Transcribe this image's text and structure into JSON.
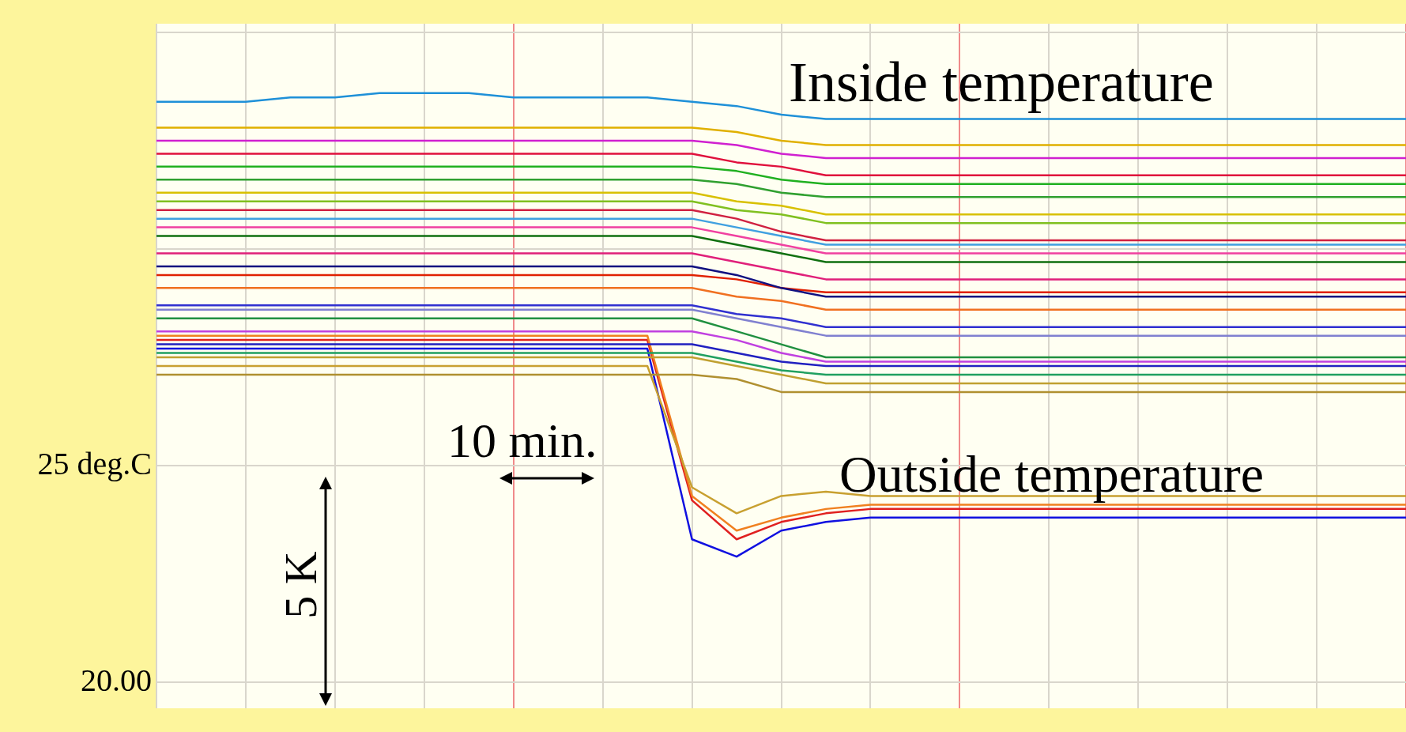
{
  "chart_data": {
    "type": "line",
    "annotations": [
      "Inside temperature",
      "Outside temperature",
      "10 min.",
      "5 K"
    ],
    "categories": [
      null,
      null,
      null,
      null,
      null,
      null,
      null,
      null,
      null,
      null,
      null,
      null,
      null,
      null,
      null,
      null,
      null,
      null,
      null,
      null,
      null,
      null,
      null,
      null,
      null,
      null,
      null,
      null,
      null
    ],
    "series": [
      {
        "color": "#1e90d8",
        "values": [
          33.4,
          33.4,
          33.4,
          33.5,
          33.5,
          33.6,
          33.6,
          33.6,
          33.5,
          33.5,
          33.5,
          33.5,
          33.4,
          33.3,
          33.1,
          33.0,
          33.0,
          33.0,
          33.0,
          33.0,
          33.0,
          33.0,
          33.0,
          33.0,
          33.0,
          33.0,
          33.0,
          33.0,
          33.0
        ]
      },
      {
        "color": "#e0b000",
        "values": [
          32.8,
          32.8,
          32.8,
          32.8,
          32.8,
          32.8,
          32.8,
          32.8,
          32.8,
          32.8,
          32.8,
          32.8,
          32.8,
          32.7,
          32.5,
          32.4,
          32.4,
          32.4,
          32.4,
          32.4,
          32.4,
          32.4,
          32.4,
          32.4,
          32.4,
          32.4,
          32.4,
          32.4,
          32.4
        ]
      },
      {
        "color": "#d020d0",
        "values": [
          32.5,
          32.5,
          32.5,
          32.5,
          32.5,
          32.5,
          32.5,
          32.5,
          32.5,
          32.5,
          32.5,
          32.5,
          32.5,
          32.4,
          32.2,
          32.1,
          32.1,
          32.1,
          32.1,
          32.1,
          32.1,
          32.1,
          32.1,
          32.1,
          32.1,
          32.1,
          32.1,
          32.1,
          32.1
        ]
      },
      {
        "color": "#e0103c",
        "values": [
          32.2,
          32.2,
          32.2,
          32.2,
          32.2,
          32.2,
          32.2,
          32.2,
          32.2,
          32.2,
          32.2,
          32.2,
          32.2,
          32.0,
          31.9,
          31.7,
          31.7,
          31.7,
          31.7,
          31.7,
          31.7,
          31.7,
          31.7,
          31.7,
          31.7,
          31.7,
          31.7,
          31.7,
          31.7
        ]
      },
      {
        "color": "#20b020",
        "values": [
          31.9,
          31.9,
          31.9,
          31.9,
          31.9,
          31.9,
          31.9,
          31.9,
          31.9,
          31.9,
          31.9,
          31.9,
          31.9,
          31.8,
          31.6,
          31.5,
          31.5,
          31.5,
          31.5,
          31.5,
          31.5,
          31.5,
          31.5,
          31.5,
          31.5,
          31.5,
          31.5,
          31.5,
          31.5
        ]
      },
      {
        "color": "#30a030",
        "values": [
          31.6,
          31.6,
          31.6,
          31.6,
          31.6,
          31.6,
          31.6,
          31.6,
          31.6,
          31.6,
          31.6,
          31.6,
          31.6,
          31.5,
          31.3,
          31.2,
          31.2,
          31.2,
          31.2,
          31.2,
          31.2,
          31.2,
          31.2,
          31.2,
          31.2,
          31.2,
          31.2,
          31.2,
          31.2
        ]
      },
      {
        "color": "#d8c000",
        "values": [
          31.3,
          31.3,
          31.3,
          31.3,
          31.3,
          31.3,
          31.3,
          31.3,
          31.3,
          31.3,
          31.3,
          31.3,
          31.3,
          31.1,
          31.0,
          30.8,
          30.8,
          30.8,
          30.8,
          30.8,
          30.8,
          30.8,
          30.8,
          30.8,
          30.8,
          30.8,
          30.8,
          30.8,
          30.8
        ]
      },
      {
        "color": "#80c020",
        "values": [
          31.1,
          31.1,
          31.1,
          31.1,
          31.1,
          31.1,
          31.1,
          31.1,
          31.1,
          31.1,
          31.1,
          31.1,
          31.1,
          30.9,
          30.8,
          30.6,
          30.6,
          30.6,
          30.6,
          30.6,
          30.6,
          30.6,
          30.6,
          30.6,
          30.6,
          30.6,
          30.6,
          30.6,
          30.6
        ]
      },
      {
        "color": "#d02040",
        "values": [
          30.9,
          30.9,
          30.9,
          30.9,
          30.9,
          30.9,
          30.9,
          30.9,
          30.9,
          30.9,
          30.9,
          30.9,
          30.9,
          30.7,
          30.4,
          30.2,
          30.2,
          30.2,
          30.2,
          30.2,
          30.2,
          30.2,
          30.2,
          30.2,
          30.2,
          30.2,
          30.2,
          30.2,
          30.2
        ]
      },
      {
        "color": "#40a0e0",
        "values": [
          30.7,
          30.7,
          30.7,
          30.7,
          30.7,
          30.7,
          30.7,
          30.7,
          30.7,
          30.7,
          30.7,
          30.7,
          30.7,
          30.5,
          30.3,
          30.1,
          30.1,
          30.1,
          30.1,
          30.1,
          30.1,
          30.1,
          30.1,
          30.1,
          30.1,
          30.1,
          30.1,
          30.1,
          30.1
        ]
      },
      {
        "color": "#f040a0",
        "values": [
          30.5,
          30.5,
          30.5,
          30.5,
          30.5,
          30.5,
          30.5,
          30.5,
          30.5,
          30.5,
          30.5,
          30.5,
          30.5,
          30.3,
          30.1,
          29.9,
          29.9,
          29.9,
          29.9,
          29.9,
          29.9,
          29.9,
          29.9,
          29.9,
          29.9,
          29.9,
          29.9,
          29.9,
          29.9
        ]
      },
      {
        "color": "#107010",
        "values": [
          30.3,
          30.3,
          30.3,
          30.3,
          30.3,
          30.3,
          30.3,
          30.3,
          30.3,
          30.3,
          30.3,
          30.3,
          30.3,
          30.1,
          29.9,
          29.7,
          29.7,
          29.7,
          29.7,
          29.7,
          29.7,
          29.7,
          29.7,
          29.7,
          29.7,
          29.7,
          29.7,
          29.7,
          29.7
        ]
      },
      {
        "color": "#e0207a",
        "values": [
          29.9,
          29.9,
          29.9,
          29.9,
          29.9,
          29.9,
          29.9,
          29.9,
          29.9,
          29.9,
          29.9,
          29.9,
          29.9,
          29.7,
          29.5,
          29.3,
          29.3,
          29.3,
          29.3,
          29.3,
          29.3,
          29.3,
          29.3,
          29.3,
          29.3,
          29.3,
          29.3,
          29.3,
          29.3
        ]
      },
      {
        "color": "#101080",
        "values": [
          29.6,
          29.6,
          29.6,
          29.6,
          29.6,
          29.6,
          29.6,
          29.6,
          29.6,
          29.6,
          29.6,
          29.6,
          29.6,
          29.4,
          29.1,
          28.9,
          28.9,
          28.9,
          28.9,
          28.9,
          28.9,
          28.9,
          28.9,
          28.9,
          28.9,
          28.9,
          28.9,
          28.9,
          28.9
        ]
      },
      {
        "color": "#e02000",
        "values": [
          29.4,
          29.4,
          29.4,
          29.4,
          29.4,
          29.4,
          29.4,
          29.4,
          29.4,
          29.4,
          29.4,
          29.4,
          29.4,
          29.3,
          29.1,
          29.0,
          29.0,
          29.0,
          29.0,
          29.0,
          29.0,
          29.0,
          29.0,
          29.0,
          29.0,
          29.0,
          29.0,
          29.0,
          29.0
        ]
      },
      {
        "color": "#f07020",
        "values": [
          29.1,
          29.1,
          29.1,
          29.1,
          29.1,
          29.1,
          29.1,
          29.1,
          29.1,
          29.1,
          29.1,
          29.1,
          29.1,
          28.9,
          28.8,
          28.6,
          28.6,
          28.6,
          28.6,
          28.6,
          28.6,
          28.6,
          28.6,
          28.6,
          28.6,
          28.6,
          28.6,
          28.6,
          28.6
        ]
      },
      {
        "color": "#3030d0",
        "values": [
          28.7,
          28.7,
          28.7,
          28.7,
          28.7,
          28.7,
          28.7,
          28.7,
          28.7,
          28.7,
          28.7,
          28.7,
          28.7,
          28.5,
          28.4,
          28.2,
          28.2,
          28.2,
          28.2,
          28.2,
          28.2,
          28.2,
          28.2,
          28.2,
          28.2,
          28.2,
          28.2,
          28.2,
          28.2
        ]
      },
      {
        "color": "#8080d0",
        "values": [
          28.6,
          28.6,
          28.6,
          28.6,
          28.6,
          28.6,
          28.6,
          28.6,
          28.6,
          28.6,
          28.6,
          28.6,
          28.6,
          28.4,
          28.2,
          28.0,
          28.0,
          28.0,
          28.0,
          28.0,
          28.0,
          28.0,
          28.0,
          28.0,
          28.0,
          28.0,
          28.0,
          28.0,
          28.0
        ]
      },
      {
        "color": "#209040",
        "values": [
          28.4,
          28.4,
          28.4,
          28.4,
          28.4,
          28.4,
          28.4,
          28.4,
          28.4,
          28.4,
          28.4,
          28.4,
          28.4,
          28.1,
          27.8,
          27.5,
          27.5,
          27.5,
          27.5,
          27.5,
          27.5,
          27.5,
          27.5,
          27.5,
          27.5,
          27.5,
          27.5,
          27.5,
          27.5
        ]
      },
      {
        "color": "#c040e0",
        "values": [
          28.1,
          28.1,
          28.1,
          28.1,
          28.1,
          28.1,
          28.1,
          28.1,
          28.1,
          28.1,
          28.1,
          28.1,
          28.1,
          27.9,
          27.6,
          27.4,
          27.4,
          27.4,
          27.4,
          27.4,
          27.4,
          27.4,
          27.4,
          27.4,
          27.4,
          27.4,
          27.4,
          27.4,
          27.4
        ]
      },
      {
        "color": "#2020c0",
        "values": [
          27.8,
          27.8,
          27.8,
          27.8,
          27.8,
          27.8,
          27.8,
          27.8,
          27.8,
          27.8,
          27.8,
          27.8,
          27.8,
          27.6,
          27.4,
          27.3,
          27.3,
          27.3,
          27.3,
          27.3,
          27.3,
          27.3,
          27.3,
          27.3,
          27.3,
          27.3,
          27.3,
          27.3,
          27.3
        ]
      },
      {
        "color": "#20a060",
        "values": [
          27.6,
          27.6,
          27.6,
          27.6,
          27.6,
          27.6,
          27.6,
          27.6,
          27.6,
          27.6,
          27.6,
          27.6,
          27.6,
          27.4,
          27.2,
          27.1,
          27.1,
          27.1,
          27.1,
          27.1,
          27.1,
          27.1,
          27.1,
          27.1,
          27.1,
          27.1,
          27.1,
          27.1,
          27.1
        ]
      },
      {
        "color": "#c0a030",
        "values": [
          27.5,
          27.5,
          27.5,
          27.5,
          27.5,
          27.5,
          27.5,
          27.5,
          27.5,
          27.5,
          27.5,
          27.5,
          27.5,
          27.3,
          27.1,
          26.9,
          26.9,
          26.9,
          26.9,
          26.9,
          26.9,
          26.9,
          26.9,
          26.9,
          26.9,
          26.9,
          26.9,
          26.9,
          26.9
        ]
      },
      {
        "color": "#b09030",
        "values": [
          27.1,
          27.1,
          27.1,
          27.1,
          27.1,
          27.1,
          27.1,
          27.1,
          27.1,
          27.1,
          27.1,
          27.1,
          27.1,
          27.0,
          26.7,
          26.7,
          26.7,
          26.7,
          26.7,
          26.7,
          26.7,
          26.7,
          26.7,
          26.7,
          26.7,
          26.7,
          26.7,
          26.7,
          26.7
        ]
      },
      {
        "color": "#c8a030",
        "values": [
          27.3,
          27.3,
          27.3,
          27.3,
          27.3,
          27.3,
          27.3,
          27.3,
          27.3,
          27.3,
          27.3,
          27.3,
          24.5,
          23.9,
          24.3,
          24.4,
          24.3,
          24.3,
          24.3,
          24.3,
          24.3,
          24.3,
          24.3,
          24.3,
          24.3,
          24.3,
          24.3,
          24.3,
          24.3
        ]
      },
      {
        "color": "#f08020",
        "values": [
          28.0,
          28.0,
          28.0,
          28.0,
          28.0,
          28.0,
          28.0,
          28.0,
          28.0,
          28.0,
          28.0,
          28.0,
          24.3,
          23.5,
          23.8,
          24.0,
          24.1,
          24.1,
          24.1,
          24.1,
          24.1,
          24.1,
          24.1,
          24.1,
          24.1,
          24.1,
          24.1,
          24.1,
          24.1
        ]
      },
      {
        "color": "#e02020",
        "values": [
          27.9,
          27.9,
          27.9,
          27.9,
          27.9,
          27.9,
          27.9,
          27.9,
          27.9,
          27.9,
          27.9,
          27.9,
          24.2,
          23.3,
          23.7,
          23.9,
          24.0,
          24.0,
          24.0,
          24.0,
          24.0,
          24.0,
          24.0,
          24.0,
          24.0,
          24.0,
          24.0,
          24.0,
          24.0
        ]
      },
      {
        "color": "#1010e0",
        "values": [
          27.7,
          27.7,
          27.7,
          27.7,
          27.7,
          27.7,
          27.7,
          27.7,
          27.7,
          27.7,
          27.7,
          27.7,
          23.3,
          22.9,
          23.5,
          23.7,
          23.8,
          23.8,
          23.8,
          23.8,
          23.8,
          23.8,
          23.8,
          23.8,
          23.8,
          23.8,
          23.8,
          23.8,
          23.8
        ]
      }
    ],
    "ylim": [
      19.4,
      35.2
    ],
    "yticks": [
      {
        "value": 20,
        "label": "20.00"
      },
      {
        "value": 25,
        "label": "25 deg.C"
      },
      {
        "value": 30,
        "label": null
      },
      {
        "value": 35,
        "label": null
      }
    ],
    "grid": true,
    "tick_labels": "y",
    "marker": "none",
    "line_style": "solid"
  }
}
